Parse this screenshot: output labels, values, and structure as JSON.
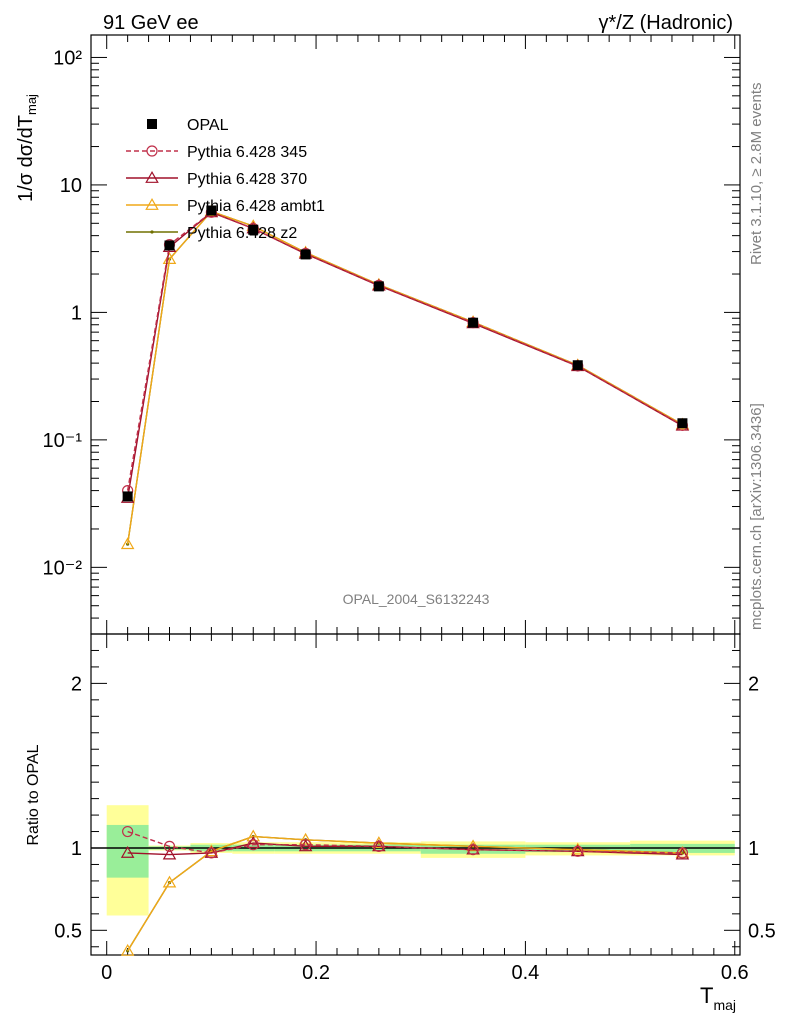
{
  "header": {
    "left_label": "91 GeV ee",
    "right_label_prefix": "γ*/Z (Hadronic)"
  },
  "side_labels": {
    "rivet": "Rivet 3.1.10, ≥ 2.8M events",
    "mcplots": "mcplots.cern.ch [arXiv:1306.3436]"
  },
  "analysis_label": "OPAL_2004_S6132243",
  "chart_data": [
    {
      "type": "line",
      "panel": "main",
      "ylabel": "1/σ dσ/dT_maj",
      "yscale": "log",
      "xlim": [
        -0.015,
        0.605
      ],
      "ylim": [
        0.003,
        150
      ],
      "y_ticks": [
        {
          "value": 0.01,
          "label": "10⁻²"
        },
        {
          "value": 0.1,
          "label": "10⁻¹"
        },
        {
          "value": 1,
          "label": "1"
        },
        {
          "value": 10,
          "label": "10"
        },
        {
          "value": 100,
          "label": "10²"
        }
      ],
      "x": [
        0.02,
        0.06,
        0.1,
        0.14,
        0.19,
        0.26,
        0.35,
        0.45,
        0.55
      ],
      "series": [
        {
          "name": "OPAL",
          "color": "#000000",
          "marker": "square",
          "dashed": false,
          "line": false,
          "values": [
            0.036,
            3.35,
            6.3,
            4.45,
            2.85,
            1.6,
            0.83,
            0.385,
            0.135
          ]
        },
        {
          "name": "Pythia 6.428 345",
          "color": "#c0304a",
          "marker": "circle",
          "dashed": true,
          "line": true,
          "values": [
            0.04,
            3.4,
            6.1,
            4.55,
            2.9,
            1.63,
            0.83,
            0.38,
            0.13
          ]
        },
        {
          "name": "Pythia 6.428 370",
          "color": "#a0102a",
          "marker": "triangle",
          "dashed": false,
          "line": true,
          "values": [
            0.035,
            3.25,
            6.1,
            4.55,
            2.88,
            1.62,
            0.82,
            0.378,
            0.129
          ]
        },
        {
          "name": "Pythia 6.428 ambt1",
          "color": "#f0a818",
          "marker": "triangle",
          "dashed": false,
          "line": true,
          "values": [
            0.0152,
            2.62,
            6.2,
            4.75,
            2.95,
            1.65,
            0.84,
            0.385,
            0.132
          ]
        },
        {
          "name": "Pythia 6.428 z2",
          "color": "#707000",
          "marker": "dot",
          "dashed": false,
          "line": true,
          "values": [
            0.0152,
            2.62,
            6.2,
            4.75,
            2.95,
            1.65,
            0.84,
            0.385,
            0.132
          ]
        }
      ]
    },
    {
      "type": "line",
      "panel": "ratio",
      "ylabel": "Ratio to OPAL",
      "xlabel": "T_maj",
      "xlim": [
        -0.015,
        0.605
      ],
      "ylim": [
        0.35,
        2.3
      ],
      "y_ticks": [
        {
          "value": 0.5,
          "label": "0.5"
        },
        {
          "value": 1,
          "label": "1"
        },
        {
          "value": 2,
          "label": "2"
        }
      ],
      "x_ticks": [
        {
          "value": 0,
          "label": "0"
        },
        {
          "value": 0.2,
          "label": "0.2"
        },
        {
          "value": 0.4,
          "label": "0.4"
        },
        {
          "value": 0.6,
          "label": "0.6"
        }
      ],
      "bands": [
        {
          "x0": 0.0,
          "x1": 0.04,
          "y_lo": 0.59,
          "y_hi": 1.26,
          "lo_g": 0.82,
          "hi_g": 1.14
        },
        {
          "x0": 0.04,
          "x1": 0.08,
          "y_lo": 0.985,
          "y_hi": 1.015,
          "lo_g": 0.99,
          "hi_g": 1.01
        },
        {
          "x0": 0.08,
          "x1": 0.12,
          "y_lo": 0.97,
          "y_hi": 1.03,
          "lo_g": 0.98,
          "hi_g": 1.02
        },
        {
          "x0": 0.12,
          "x1": 0.16,
          "y_lo": 0.965,
          "y_hi": 1.035,
          "lo_g": 0.98,
          "hi_g": 1.02
        },
        {
          "x0": 0.16,
          "x1": 0.22,
          "y_lo": 0.965,
          "y_hi": 1.035,
          "lo_g": 0.98,
          "hi_g": 1.02
        },
        {
          "x0": 0.22,
          "x1": 0.3,
          "y_lo": 0.965,
          "y_hi": 1.035,
          "lo_g": 0.98,
          "hi_g": 1.02
        },
        {
          "x0": 0.3,
          "x1": 0.4,
          "y_lo": 0.94,
          "y_hi": 1.04,
          "lo_g": 0.965,
          "hi_g": 1.02
        },
        {
          "x0": 0.4,
          "x1": 0.5,
          "y_lo": 0.955,
          "y_hi": 1.035,
          "lo_g": 0.975,
          "hi_g": 1.02
        },
        {
          "x0": 0.5,
          "x1": 0.6,
          "y_lo": 0.955,
          "y_hi": 1.045,
          "lo_g": 0.97,
          "hi_g": 1.025
        }
      ],
      "x": [
        0.02,
        0.06,
        0.1,
        0.14,
        0.19,
        0.26,
        0.35,
        0.45,
        0.55
      ],
      "series": [
        {
          "name": "Pythia 6.428 345",
          "color": "#c0304a",
          "marker": "circle",
          "dashed": true,
          "values": [
            1.1,
            1.01,
            0.97,
            1.02,
            1.02,
            1.01,
            0.99,
            0.98,
            0.97
          ]
        },
        {
          "name": "Pythia 6.428 370",
          "color": "#a0102a",
          "marker": "triangle",
          "dashed": false,
          "values": [
            0.97,
            0.96,
            0.97,
            1.03,
            1.01,
            1.01,
            0.99,
            0.98,
            0.96
          ]
        },
        {
          "name": "Pythia 6.428 ambt1",
          "color": "#f0a818",
          "marker": "triangle",
          "dashed": false,
          "values": [
            0.375,
            0.79,
            0.98,
            1.07,
            1.05,
            1.03,
            1.01,
            0.99,
            0.97
          ]
        },
        {
          "name": "Pythia 6.428 z2",
          "color": "#707000",
          "marker": "dot",
          "dashed": false,
          "values": [
            0.375,
            0.79,
            0.98,
            1.07,
            1.05,
            1.03,
            1.01,
            0.99,
            0.97
          ]
        }
      ]
    }
  ]
}
